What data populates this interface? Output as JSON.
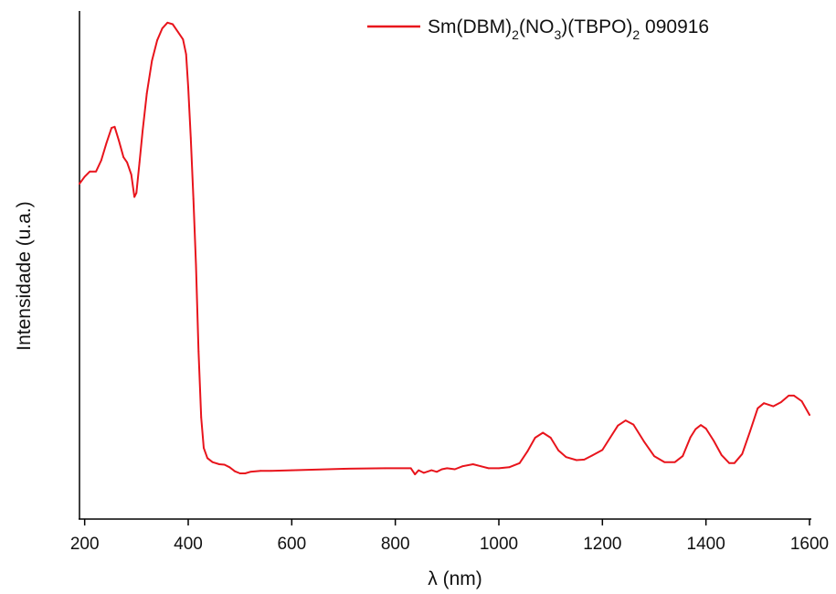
{
  "chart_data": {
    "type": "line",
    "title": "",
    "xlabel": "λ (nm)",
    "ylabel": "Intensidade (u.a.)",
    "xlim": [
      190,
      1600
    ],
    "ylim": [
      0,
      1.0
    ],
    "xticks": [
      200,
      400,
      600,
      800,
      1000,
      1200,
      1400,
      1600
    ],
    "x_tick_labels": [
      "200",
      "400",
      "600",
      "800",
      "1000",
      "1200",
      "1400",
      "1600"
    ],
    "y_tick_labels_shown": false,
    "grid": false,
    "legend_position": "top-right",
    "legend": {
      "name_parts": [
        "Sm(DBM)",
        "2",
        "(NO",
        "3",
        ")(TBPO)",
        "2",
        " 090916"
      ]
    },
    "series": [
      {
        "name": "Sm(DBM)2(NO3)(TBPO)2 090916",
        "color": "#e8141c",
        "points": [
          [
            190,
            0.66
          ],
          [
            200,
            0.674
          ],
          [
            210,
            0.684
          ],
          [
            222,
            0.684
          ],
          [
            232,
            0.706
          ],
          [
            242,
            0.74
          ],
          [
            252,
            0.77
          ],
          [
            258,
            0.772
          ],
          [
            266,
            0.745
          ],
          [
            275,
            0.712
          ],
          [
            282,
            0.702
          ],
          [
            290,
            0.678
          ],
          [
            296,
            0.634
          ],
          [
            300,
            0.642
          ],
          [
            306,
            0.702
          ],
          [
            312,
            0.764
          ],
          [
            320,
            0.838
          ],
          [
            330,
            0.902
          ],
          [
            340,
            0.942
          ],
          [
            350,
            0.966
          ],
          [
            360,
            0.977
          ],
          [
            370,
            0.974
          ],
          [
            380,
            0.959
          ],
          [
            390,
            0.944
          ],
          [
            396,
            0.915
          ],
          [
            400,
            0.85
          ],
          [
            405,
            0.75
          ],
          [
            410,
            0.63
          ],
          [
            415,
            0.5
          ],
          [
            420,
            0.33
          ],
          [
            425,
            0.2
          ],
          [
            430,
            0.14
          ],
          [
            437,
            0.12
          ],
          [
            447,
            0.112
          ],
          [
            460,
            0.108
          ],
          [
            470,
            0.107
          ],
          [
            480,
            0.102
          ],
          [
            490,
            0.094
          ],
          [
            500,
            0.09
          ],
          [
            510,
            0.09
          ],
          [
            520,
            0.093
          ],
          [
            540,
            0.095
          ],
          [
            560,
            0.095
          ],
          [
            600,
            0.096
          ],
          [
            700,
            0.099
          ],
          [
            780,
            0.1
          ],
          [
            830,
            0.1
          ],
          [
            838,
            0.088
          ],
          [
            845,
            0.096
          ],
          [
            855,
            0.091
          ],
          [
            870,
            0.096
          ],
          [
            880,
            0.093
          ],
          [
            890,
            0.098
          ],
          [
            900,
            0.1
          ],
          [
            915,
            0.098
          ],
          [
            930,
            0.104
          ],
          [
            950,
            0.108
          ],
          [
            965,
            0.104
          ],
          [
            980,
            0.1
          ],
          [
            1000,
            0.1
          ],
          [
            1020,
            0.102
          ],
          [
            1040,
            0.11
          ],
          [
            1055,
            0.133
          ],
          [
            1070,
            0.16
          ],
          [
            1085,
            0.17
          ],
          [
            1100,
            0.16
          ],
          [
            1115,
            0.135
          ],
          [
            1130,
            0.122
          ],
          [
            1150,
            0.116
          ],
          [
            1165,
            0.117
          ],
          [
            1180,
            0.125
          ],
          [
            1200,
            0.136
          ],
          [
            1215,
            0.16
          ],
          [
            1230,
            0.184
          ],
          [
            1245,
            0.194
          ],
          [
            1260,
            0.186
          ],
          [
            1280,
            0.153
          ],
          [
            1300,
            0.124
          ],
          [
            1320,
            0.112
          ],
          [
            1340,
            0.112
          ],
          [
            1355,
            0.124
          ],
          [
            1370,
            0.161
          ],
          [
            1380,
            0.177
          ],
          [
            1390,
            0.185
          ],
          [
            1400,
            0.178
          ],
          [
            1415,
            0.154
          ],
          [
            1430,
            0.126
          ],
          [
            1445,
            0.11
          ],
          [
            1455,
            0.11
          ],
          [
            1470,
            0.128
          ],
          [
            1485,
            0.172
          ],
          [
            1500,
            0.218
          ],
          [
            1512,
            0.228
          ],
          [
            1530,
            0.222
          ],
          [
            1545,
            0.23
          ],
          [
            1560,
            0.243
          ],
          [
            1570,
            0.243
          ],
          [
            1585,
            0.232
          ],
          [
            1600,
            0.205
          ]
        ]
      }
    ]
  }
}
